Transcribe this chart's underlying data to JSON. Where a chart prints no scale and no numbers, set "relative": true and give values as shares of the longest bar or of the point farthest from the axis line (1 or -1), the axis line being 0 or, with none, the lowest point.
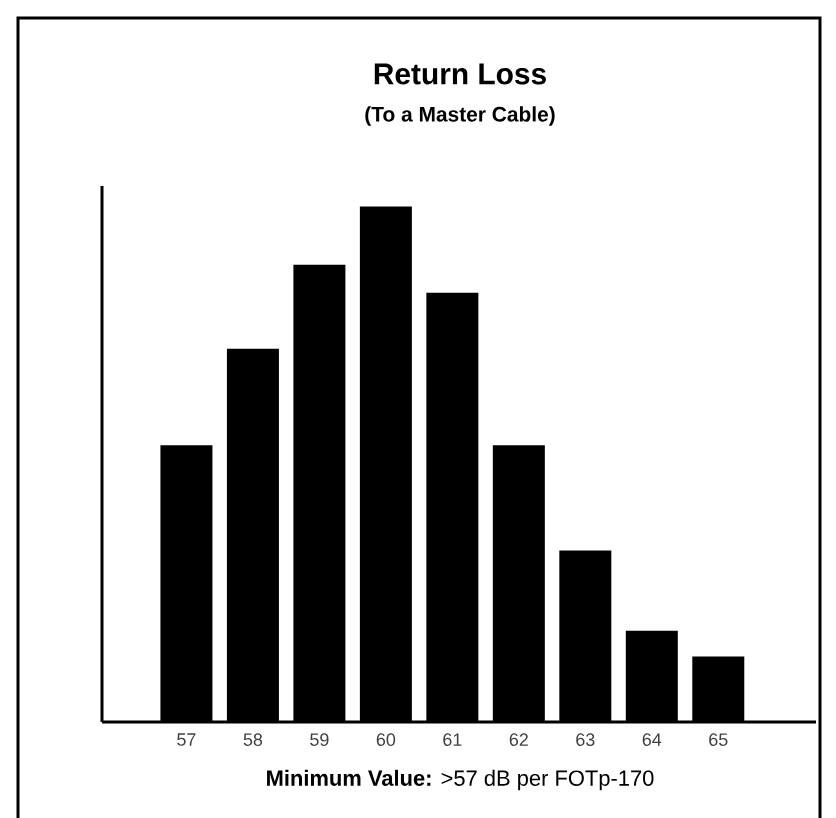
{
  "chart_data": {
    "type": "bar",
    "title": "Return Loss",
    "subtitle": "(To a Master Cable)",
    "categories": [
      "57",
      "58",
      "59",
      "60",
      "61",
      "62",
      "63",
      "64",
      "65"
    ],
    "values": [
      0.537,
      0.724,
      0.887,
      1,
      0.833,
      0.537,
      0.333,
      0.177,
      0.127
    ],
    "color": "#000000",
    "relative": true,
    "annotations": [
      "**Minimum Value:** >57 dB per FOTp-170"
    ]
  }
}
